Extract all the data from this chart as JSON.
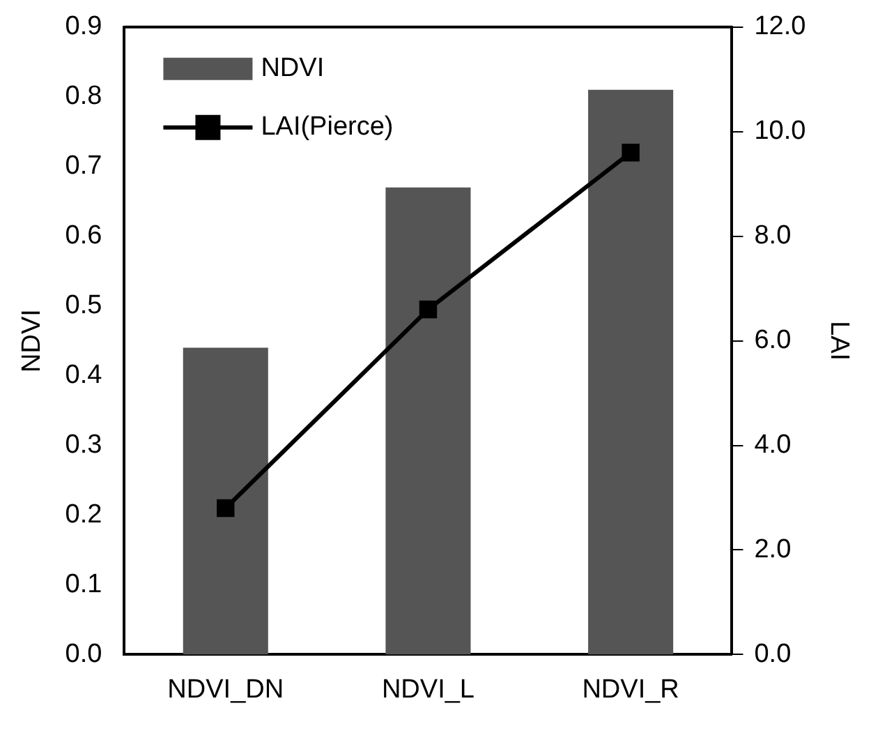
{
  "chart_data": {
    "type": "bar",
    "categories": [
      "NDVI_DN",
      "NDVI_L",
      "NDVI_R"
    ],
    "series": [
      {
        "name": "NDVI",
        "color": "#555555",
        "values": [
          0.44,
          0.67,
          0.81
        ]
      },
      {
        "name": "LAI(Pierce)",
        "type": "line",
        "axis": "y2",
        "color": "#000000",
        "values": [
          2.8,
          6.6,
          9.6
        ]
      }
    ],
    "ylabel": "NDVI",
    "y2label": "LAI",
    "ylim": [
      0,
      0.9
    ],
    "yticks": [
      {
        "value": 0,
        "label": "0.0"
      },
      0.1,
      0.2,
      0.3,
      0.4,
      0.5,
      0.6,
      0.7,
      0.8,
      0.9
    ],
    "y2lim": [
      0,
      12
    ],
    "y2ticks": [
      {
        "value": 0,
        "label": "0.0"
      },
      {
        "value": 2,
        "label": "2.0"
      },
      {
        "value": 4,
        "label": "4.0"
      },
      {
        "value": 6,
        "label": "6.0"
      },
      {
        "value": 8,
        "label": "8.0"
      },
      {
        "value": 10,
        "label": "10.0"
      },
      {
        "value": 12,
        "label": "12.0"
      }
    ],
    "grid": false,
    "legend": "top left",
    "marker": "square",
    "line_style": "solid"
  }
}
